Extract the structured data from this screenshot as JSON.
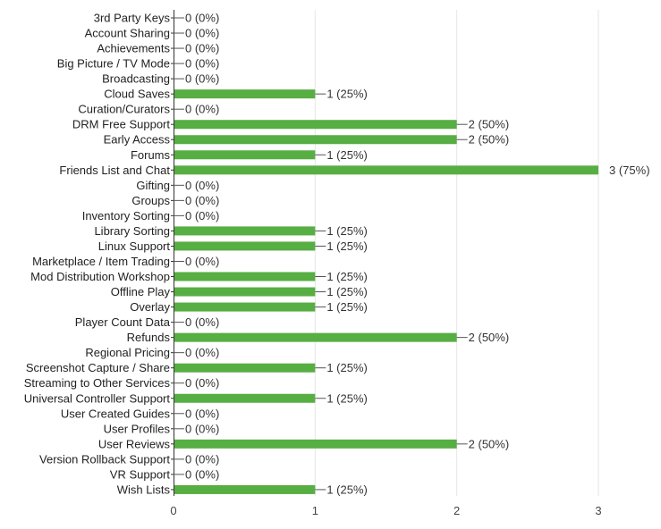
{
  "colors": {
    "bar": "#57ae43",
    "grid": "#e6e6e6",
    "axis": "#333333",
    "leader": "#555555"
  },
  "chart_data": {
    "type": "bar",
    "orientation": "horizontal",
    "categories": [
      "3rd Party Keys",
      "Account Sharing",
      "Achievements",
      "Big Picture / TV Mode",
      "Broadcasting",
      "Cloud Saves",
      "Curation/Curators",
      "DRM Free Support",
      "Early Access",
      "Forums",
      "Friends List and Chat",
      "Gifting",
      "Groups",
      "Inventory Sorting",
      "Library Sorting",
      "Linux Support",
      "Marketplace / Item Trading",
      "Mod Distribution Workshop",
      "Offline Play",
      "Overlay",
      "Player Count Data",
      "Refunds",
      "Regional Pricing",
      "Screenshot Capture / Share",
      "Streaming to Other Services",
      "Universal Controller Support",
      "User Created Guides",
      "User Profiles",
      "User Reviews",
      "Version Rollback Support",
      "VR Support",
      "Wish Lists"
    ],
    "values": [
      0,
      0,
      0,
      0,
      0,
      1,
      0,
      2,
      2,
      1,
      3,
      0,
      0,
      0,
      1,
      1,
      0,
      1,
      1,
      1,
      0,
      2,
      0,
      1,
      0,
      1,
      0,
      0,
      2,
      0,
      0,
      1
    ],
    "data_labels": [
      "0 (0%)",
      "0 (0%)",
      "0 (0%)",
      "0 (0%)",
      "0 (0%)",
      "1 (25%)",
      "0 (0%)",
      "2 (50%)",
      "2 (50%)",
      "1 (25%)",
      "3 (75%)",
      "0 (0%)",
      "0 (0%)",
      "0 (0%)",
      "1 (25%)",
      "1 (25%)",
      "0 (0%)",
      "1 (25%)",
      "1 (25%)",
      "1 (25%)",
      "0 (0%)",
      "2 (50%)",
      "0 (0%)",
      "1 (25%)",
      "0 (0%)",
      "1 (25%)",
      "0 (0%)",
      "0 (0%)",
      "2 (50%)",
      "0 (0%)",
      "0 (0%)",
      "1 (25%)"
    ],
    "xlim": [
      0,
      3
    ],
    "xticks": [
      "0",
      "1",
      "2",
      "3"
    ],
    "grid": true,
    "title": "",
    "xlabel": "",
    "ylabel": ""
  }
}
